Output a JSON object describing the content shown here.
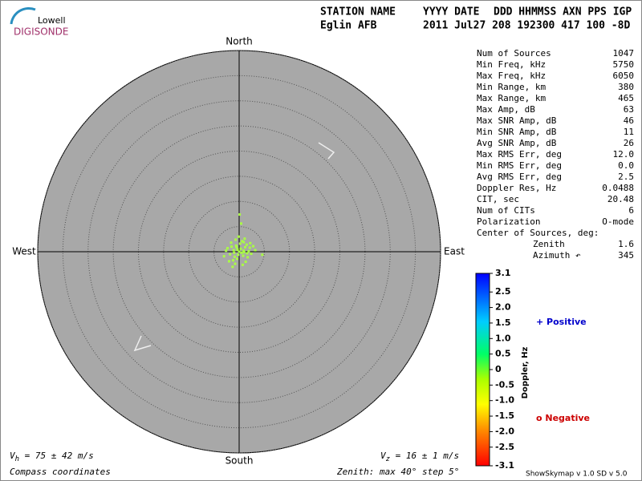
{
  "header": {
    "logo_top": "Lowell",
    "logo_bottom": "DIGISONDE",
    "columns": [
      "STATION NAME",
      "YYYY DATE",
      "DDD HHMMSS AXN PPS IGP"
    ],
    "values": [
      "Eglin AFB",
      "2011 Jul27 208 192300 417 100 -8D"
    ]
  },
  "stats": [
    {
      "label": "Num of Sources",
      "value": "1047"
    },
    {
      "label": "Min Freq, kHz",
      "value": "5750"
    },
    {
      "label": "Max Freq, kHz",
      "value": "6050"
    },
    {
      "label": "Min Range, km",
      "value": "380"
    },
    {
      "label": "Max Range, km",
      "value": "465"
    },
    {
      "label": "Max Amp, dB",
      "value": "63"
    },
    {
      "label": "Max SNR Amp, dB",
      "value": "46"
    },
    {
      "label": "Min SNR Amp, dB",
      "value": "11"
    },
    {
      "label": "Avg SNR Amp, dB",
      "value": "26"
    },
    {
      "label": "Max RMS Err, deg",
      "value": "12.0"
    },
    {
      "label": "Min RMS Err, deg",
      "value": "0.0"
    },
    {
      "label": "Avg RMS Err, deg",
      "value": "2.5"
    },
    {
      "label": "Doppler Res, Hz",
      "value": "0.0488"
    },
    {
      "label": "CIT, sec",
      "value": "20.48"
    },
    {
      "label": "Num of CITs",
      "value": "6"
    },
    {
      "label": "Polarization",
      "value": "O-mode"
    },
    {
      "label": "Center of Sources, deg:"
    },
    {
      "label": "Zenith",
      "value": "1.6",
      "indent": true
    },
    {
      "label": "Azimuth ↶",
      "value": "345",
      "indent": true
    }
  ],
  "chart_data": {
    "type": "scatter",
    "directions": {
      "north": "North",
      "east": "East",
      "south": "South",
      "west": "West"
    },
    "rlim": [
      0,
      40
    ],
    "rticks": [
      5,
      10,
      15,
      20,
      25,
      30,
      35,
      40
    ],
    "color": "#aaff44",
    "x": [
      -0.3,
      0.5,
      1.2,
      -1.1,
      0.8,
      -0.6,
      1.9,
      -1.8,
      0.2,
      -0.9,
      1.5,
      -2.3,
      2.4,
      0.0,
      -0.4,
      1.0,
      -1.5,
      0.6,
      -0.2,
      2.1,
      -2.6,
      0.9,
      -1.2,
      1.7,
      -0.7,
      0.3,
      3.2,
      -3.0,
      1.3,
      -0.1,
      0.7,
      -1.6,
      2.8,
      -2.0,
      0.4,
      1.1,
      -0.8,
      4.6,
      -1.3,
      0.1,
      0.9,
      -0.5,
      1.6,
      -1.0,
      2.2
    ],
    "y": [
      0.4,
      -0.2,
      0.9,
      0.3,
      -0.8,
      1.2,
      0.1,
      -0.5,
      1.6,
      -1.0,
      1.4,
      0.7,
      -0.4,
      0.0,
      -1.4,
      -0.1,
      1.0,
      2.1,
      -0.6,
      0.8,
      0.2,
      1.9,
      -1.7,
      -1.1,
      2.4,
      0.6,
      0.3,
      -0.9,
      -2.0,
      3.0,
      -2.6,
      1.8,
      1.1,
      -1.9,
      5.6,
      2.6,
      -2.4,
      -0.6,
      -3.0,
      7.4,
      0.2,
      0.9,
      -0.3,
      -0.2,
      1.7
    ],
    "colorbar": {
      "label": "Doppler, Hz",
      "lim": [
        -3.1,
        3.1
      ],
      "ticks": [
        3.1,
        2.5,
        {
          "value": 2,
          "label": "2.0"
        },
        1.5,
        {
          "value": 1,
          "label": "1.0"
        },
        0.5,
        0,
        -0.5,
        {
          "value": -1,
          "label": "-1.0"
        },
        -1.5,
        {
          "value": -2,
          "label": "-2.0"
        },
        -2.5,
        -3.1
      ],
      "positive": "+ Positive",
      "negative": "o Negative"
    },
    "vh": {
      "symbol": "V",
      "sub": "h",
      "text": " = 75 ± 42 m/s"
    },
    "vz": {
      "symbol": "V",
      "sub": "z",
      "text": " = 16 ± 1 m/s"
    },
    "coords_note": "Compass coordinates",
    "zenith_note": "Zenith: max 40°  step 5°"
  },
  "footer": "ShowSkymap v 1.0   SD v 5.0"
}
